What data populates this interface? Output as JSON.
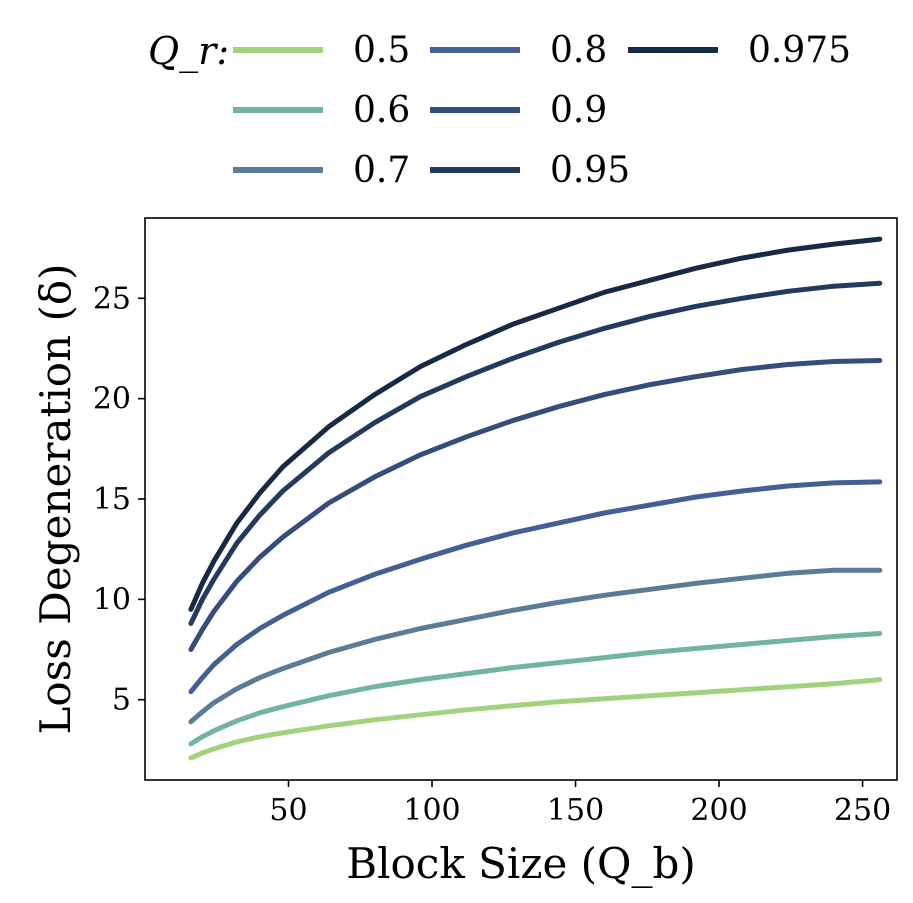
{
  "chart_data": {
    "type": "line",
    "title": "",
    "xlabel": "Block Size (Q_b)",
    "ylabel": "Loss Degeneration (δ)",
    "xlim": [
      0,
      262
    ],
    "ylim": [
      1,
      29
    ],
    "xticks": [
      50,
      100,
      150,
      200,
      250
    ],
    "yticks": [
      5,
      10,
      15,
      20,
      25
    ],
    "legend_title": "Q_r:",
    "legend_position": "top",
    "x": [
      16,
      20,
      24,
      32,
      40,
      48,
      64,
      80,
      96,
      112,
      128,
      144,
      160,
      176,
      192,
      208,
      224,
      240,
      256
    ],
    "series": [
      {
        "name": "0.5",
        "color": "#a3d27c",
        "values": [
          2.1,
          2.35,
          2.55,
          2.9,
          3.15,
          3.35,
          3.7,
          4.0,
          4.25,
          4.5,
          4.7,
          4.9,
          5.05,
          5.2,
          5.35,
          5.5,
          5.65,
          5.8,
          6.0
        ]
      },
      {
        "name": "0.6",
        "color": "#72b3a1",
        "values": [
          2.8,
          3.15,
          3.45,
          3.95,
          4.35,
          4.65,
          5.2,
          5.65,
          6.0,
          6.3,
          6.6,
          6.85,
          7.1,
          7.35,
          7.55,
          7.75,
          7.95,
          8.15,
          8.3
        ]
      },
      {
        "name": "0.7",
        "color": "#5a7c98",
        "values": [
          3.9,
          4.4,
          4.85,
          5.55,
          6.1,
          6.55,
          7.35,
          8.0,
          8.55,
          9.0,
          9.45,
          9.85,
          10.2,
          10.5,
          10.8,
          11.05,
          11.3,
          11.45,
          11.45
        ]
      },
      {
        "name": "0.8",
        "color": "#445f94",
        "values": [
          5.4,
          6.1,
          6.75,
          7.75,
          8.55,
          9.2,
          10.35,
          11.25,
          12.0,
          12.7,
          13.3,
          13.8,
          14.3,
          14.7,
          15.1,
          15.4,
          15.65,
          15.8,
          15.85
        ]
      },
      {
        "name": "0.9",
        "color": "#344d7c",
        "values": [
          7.5,
          8.5,
          9.4,
          10.9,
          12.1,
          13.1,
          14.8,
          16.1,
          17.2,
          18.1,
          18.9,
          19.6,
          20.2,
          20.7,
          21.1,
          21.45,
          21.7,
          21.85,
          21.9
        ]
      },
      {
        "name": "0.95",
        "color": "#223a5e",
        "values": [
          8.8,
          10.0,
          11.0,
          12.8,
          14.2,
          15.4,
          17.3,
          18.8,
          20.1,
          21.1,
          22.0,
          22.8,
          23.5,
          24.1,
          24.6,
          25.0,
          25.35,
          25.6,
          25.75
        ]
      },
      {
        "name": "0.975",
        "color": "#172a45",
        "values": [
          9.5,
          10.8,
          11.9,
          13.8,
          15.3,
          16.6,
          18.6,
          20.2,
          21.6,
          22.7,
          23.7,
          24.5,
          25.3,
          25.9,
          26.5,
          27.0,
          27.4,
          27.7,
          27.95
        ]
      }
    ]
  }
}
